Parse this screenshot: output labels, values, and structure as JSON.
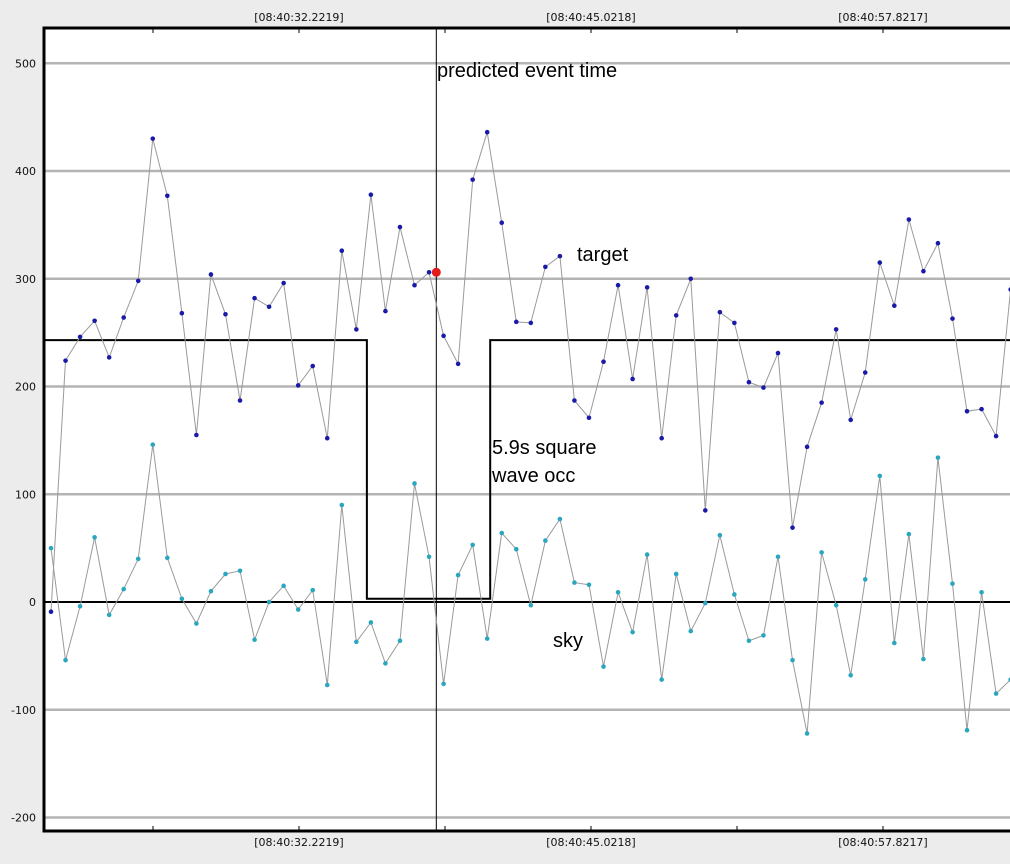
{
  "chart_data": {
    "type": "line",
    "title": "",
    "xlabel": "",
    "ylabel": "",
    "ylim": [
      -210,
      545
    ],
    "x_tick_labels": [
      "[08:40:32.2219]",
      "[08:40:45.0218]",
      "[08:40:57.8217]"
    ],
    "y_ticks": [
      -200,
      -100,
      0,
      100,
      200,
      300,
      400,
      500
    ],
    "grid": true,
    "annotations": {
      "event": "predicted event time",
      "target": "target",
      "sky": "sky",
      "occ_line1": "5.9s square",
      "occ_line2": "wave occ"
    },
    "x": [
      0,
      1,
      2,
      3,
      4,
      5,
      6,
      7,
      8,
      9,
      10,
      11,
      12,
      13,
      14,
      15,
      16,
      17,
      18,
      19,
      20,
      21,
      22,
      23,
      24,
      25,
      26,
      27,
      28,
      29,
      30,
      31,
      32,
      33,
      34,
      35,
      36,
      37,
      38,
      39,
      40,
      41,
      42,
      43,
      44,
      45,
      46,
      47,
      48,
      49,
      50,
      51,
      52,
      53,
      54,
      55,
      56,
      57,
      58,
      59,
      60,
      61,
      62,
      63,
      64,
      65,
      66,
      67
    ],
    "event_index": 26.5,
    "square_wave": {
      "high": 243,
      "low": 3,
      "start_index": 22,
      "end_index": 30
    },
    "series": [
      {
        "name": "target",
        "color": "#1a1aa8",
        "values": [
          -9,
          224,
          246,
          261,
          227,
          264,
          298,
          430,
          377,
          268,
          155,
          304,
          267,
          187,
          282,
          274,
          296,
          201,
          219,
          152,
          326,
          253,
          378,
          270,
          348,
          294,
          306,
          247,
          221,
          392,
          436,
          352,
          260,
          259,
          311,
          321,
          187,
          171,
          223,
          294,
          207,
          292,
          152,
          266,
          300,
          85,
          269,
          259,
          204,
          199,
          231,
          69,
          144,
          185,
          253,
          169,
          213,
          315,
          275,
          355,
          307,
          333,
          263,
          177,
          179,
          154,
          290,
          290
        ]
      },
      {
        "name": "sky",
        "color": "#2aa6bf",
        "values": [
          50,
          -54,
          -4,
          60,
          -12,
          12,
          40,
          146,
          41,
          3,
          -20,
          10,
          26,
          29,
          -35,
          0,
          15,
          -7,
          11,
          -77,
          90,
          -37,
          -19,
          -57,
          -36,
          110,
          42,
          -76,
          25,
          53,
          -34,
          64,
          49,
          -3,
          57,
          77,
          18,
          16,
          -60,
          9,
          -28,
          44,
          -72,
          26,
          -27,
          -1,
          62,
          7,
          -36,
          -31,
          42,
          -54,
          -122,
          46,
          -3,
          -68,
          21,
          117,
          -38,
          63,
          -53,
          134,
          17,
          -119,
          9,
          -85,
          -72,
          -72
        ]
      }
    ]
  }
}
